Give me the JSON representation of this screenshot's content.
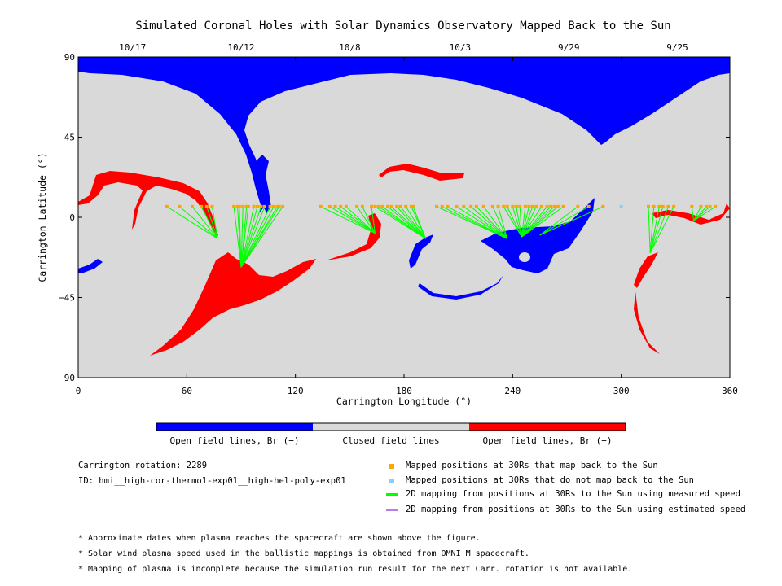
{
  "chart_data": {
    "type": "map",
    "title": "Simulated Coronal Holes with Solar Dynamics Observatory Mapped Back to the Sun",
    "xlabel": "Carrington Longitude (°)",
    "ylabel": "Carrington Latitude (°)",
    "xlim": [
      0,
      360
    ],
    "ylim": [
      -90,
      90
    ],
    "x_ticks": [
      "0",
      "60",
      "120",
      "180",
      "240",
      "300",
      "360"
    ],
    "y_ticks": [
      "90",
      "45",
      "0",
      "−45",
      "−90"
    ],
    "date_ticks": [
      {
        "label": "10/17",
        "lon": 30
      },
      {
        "label": "10/12",
        "lon": 90
      },
      {
        "label": "10/8",
        "lon": 150
      },
      {
        "label": "10/3",
        "lon": 211
      },
      {
        "label": "9/29",
        "lon": 271
      },
      {
        "label": "9/25",
        "lon": 331
      }
    ],
    "colors": {
      "open_negative": "#0000ff",
      "closed": "#d9d9d9",
      "open_positive": "#ff0000",
      "mapped_yes": "#ffa500",
      "mapped_no": "#87cefa",
      "measured": "#00ff00",
      "estimated": "#b47fe6"
    },
    "colorbar_labels": [
      "Open field lines, Br (−)",
      "Closed field lines",
      "Open field lines, Br (+)"
    ],
    "mapped_lat": 6,
    "groups": [
      {
        "target": [
          77,
          -12
        ],
        "lons": [
          49,
          56,
          63,
          68,
          71,
          74
        ]
      },
      {
        "target": [
          90,
          -28
        ],
        "lons": [
          86,
          88,
          89,
          91,
          93,
          94,
          97,
          99,
          101,
          103,
          106,
          108,
          110,
          111,
          113
        ]
      },
      {
        "target": [
          164,
          -9
        ],
        "lons": [
          134,
          139,
          142,
          145,
          148,
          154,
          157,
          162
        ]
      },
      {
        "target": [
          192,
          -12
        ],
        "lons": [
          164,
          166,
          168,
          171,
          173,
          176,
          178,
          181,
          184,
          185
        ]
      },
      {
        "target": [
          237,
          -12
        ],
        "lons": [
          198,
          201,
          204,
          209,
          213,
          217,
          220,
          224,
          229,
          232
        ]
      },
      {
        "target": [
          245,
          -11
        ],
        "lons": [
          235,
          237,
          240,
          242,
          244,
          247,
          249,
          251,
          253,
          256,
          259,
          261,
          263,
          265,
          268
        ]
      },
      {
        "target": [
          255,
          -10
        ],
        "lons": [
          276,
          282,
          290
        ]
      },
      {
        "target": [
          316,
          -20
        ],
        "lons": [
          315,
          318,
          321,
          323,
          326,
          329
        ]
      },
      {
        "target": [
          340,
          -2
        ],
        "lons": [
          339,
          344,
          347,
          349,
          352
        ]
      }
    ],
    "unmapped_points": [
      [
        300,
        6
      ]
    ]
  },
  "legend": {
    "rotation": "Carrington rotation: 2289",
    "id": "ID: hmi__high-cor-thermo1-exp01__high-hel-poly-exp01",
    "mapped_yes": "Mapped positions at 30Rs that map back to the Sun",
    "mapped_no": "Mapped positions at 30Rs that do not map back to the Sun",
    "measured": "2D mapping from positions at 30Rs to the Sun using measured speed",
    "estimated": "2D mapping from positions at 30Rs to the Sun using estimated speed"
  },
  "notes": [
    "* Approximate dates when plasma reaches the spacecraft are shown above the figure.",
    "* Solar wind plasma speed used in the ballistic mappings is obtained from OMNI_M spacecraft.",
    "* Mapping of plasma is incomplete because the simulation run result for the next Carr. rotation is not available."
  ]
}
